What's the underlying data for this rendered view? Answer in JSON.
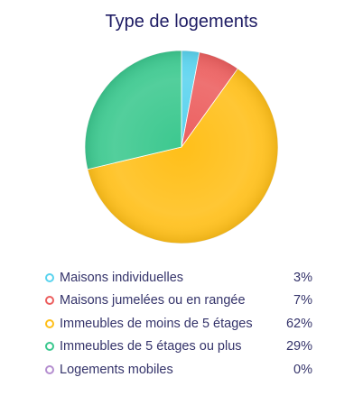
{
  "chart_data": {
    "type": "pie",
    "title": "Type de logements",
    "legend_position": "bottom",
    "slices": [
      {
        "label": "Maisons individuelles",
        "value": 3,
        "display": "3%",
        "color": "#5ad3ee"
      },
      {
        "label": "Maisons jumelées ou en rangée",
        "value": 7,
        "display": "7%",
        "color": "#ec5f5f"
      },
      {
        "label": "Immeubles de moins de 5 étages",
        "value": 62,
        "display": "62%",
        "color": "#ffbf19"
      },
      {
        "label": "Immeubles de 5 étages ou plus",
        "value": 29,
        "display": "29%",
        "color": "#3cc88f"
      },
      {
        "label": "Logements mobiles",
        "value": 0,
        "display": "0%",
        "color": "#b58fd0"
      }
    ]
  }
}
